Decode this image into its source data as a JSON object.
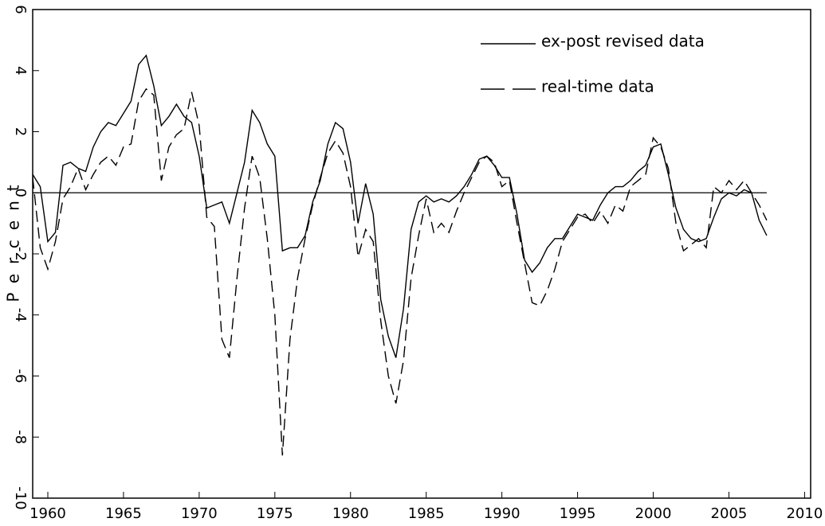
{
  "chart_data": {
    "type": "line",
    "y_label": "Percent",
    "x": [
      1959.0,
      1959.5,
      1960.0,
      1960.5,
      1961.0,
      1961.5,
      1962.0,
      1962.5,
      1963.0,
      1963.5,
      1964.0,
      1964.5,
      1965.0,
      1965.5,
      1966.0,
      1966.5,
      1967.0,
      1967.5,
      1968.0,
      1968.5,
      1969.0,
      1969.5,
      1970.0,
      1970.5,
      1971.0,
      1971.5,
      1972.0,
      1972.5,
      1973.0,
      1973.5,
      1974.0,
      1974.5,
      1975.0,
      1975.5,
      1976.0,
      1976.5,
      1977.0,
      1977.5,
      1978.0,
      1978.5,
      1979.0,
      1979.5,
      1980.0,
      1980.5,
      1981.0,
      1981.5,
      1982.0,
      1982.5,
      1983.0,
      1983.5,
      1984.0,
      1984.5,
      1985.0,
      1985.5,
      1986.0,
      1986.5,
      1987.0,
      1987.5,
      1988.0,
      1988.5,
      1989.0,
      1989.5,
      1990.0,
      1990.5,
      1991.0,
      1991.5,
      1992.0,
      1992.5,
      1993.0,
      1993.5,
      1994.0,
      1994.5,
      1995.0,
      1995.5,
      1996.0,
      1996.5,
      1997.0,
      1997.5,
      1998.0,
      1998.5,
      1999.0,
      1999.5,
      2000.0,
      2000.5,
      2001.0,
      2001.5,
      2002.0,
      2002.5,
      2003.0,
      2003.5,
      2004.0,
      2004.5,
      2005.0,
      2005.5,
      2006.0,
      2006.5,
      2007.0,
      2007.5
    ],
    "series": [
      {
        "name": "ex-post revised data",
        "color": "#000000",
        "dash": "solid",
        "values": [
          0.6,
          0.2,
          -1.6,
          -1.3,
          0.9,
          1.0,
          0.8,
          0.7,
          1.5,
          2.0,
          2.3,
          2.2,
          2.6,
          3.0,
          4.2,
          4.5,
          3.5,
          2.2,
          2.5,
          2.9,
          2.5,
          2.3,
          1.2,
          -0.5,
          -0.4,
          -0.3,
          -1.0,
          0.0,
          1.0,
          2.7,
          2.3,
          1.6,
          1.2,
          -1.9,
          -1.8,
          -1.8,
          -1.4,
          -0.3,
          0.4,
          1.6,
          2.3,
          2.1,
          1.0,
          -1.0,
          0.3,
          -0.7,
          -3.5,
          -4.7,
          -5.4,
          -3.8,
          -1.2,
          -0.3,
          -0.1,
          -0.3,
          -0.2,
          -0.3,
          -0.1,
          0.2,
          0.6,
          1.1,
          1.2,
          0.9,
          0.5,
          0.5,
          -0.7,
          -2.2,
          -2.6,
          -2.3,
          -1.8,
          -1.5,
          -1.5,
          -1.1,
          -0.7,
          -0.8,
          -0.9,
          -0.4,
          0.0,
          0.2,
          0.2,
          0.4,
          0.7,
          0.9,
          1.5,
          1.6,
          0.6,
          -0.5,
          -1.2,
          -1.5,
          -1.6,
          -1.5,
          -0.8,
          -0.2,
          0.0,
          -0.1,
          0.1,
          0.0,
          -0.9,
          -1.4
        ]
      },
      {
        "name": "real-time data",
        "color": "#000000",
        "dash": "dashed",
        "values": [
          0.5,
          -1.8,
          -2.5,
          -1.6,
          -0.2,
          0.2,
          0.8,
          0.1,
          0.6,
          1.0,
          1.2,
          0.9,
          1.5,
          1.6,
          3.0,
          3.4,
          3.2,
          0.4,
          1.5,
          1.9,
          2.1,
          3.3,
          2.2,
          -0.8,
          -1.1,
          -4.8,
          -5.4,
          -2.8,
          -0.5,
          1.2,
          0.5,
          -1.5,
          -4.0,
          -8.6,
          -4.8,
          -2.8,
          -1.5,
          -0.4,
          0.5,
          1.3,
          1.7,
          1.3,
          0.2,
          -2.1,
          -1.2,
          -1.6,
          -4.2,
          -6.0,
          -6.9,
          -5.5,
          -2.8,
          -1.4,
          -0.2,
          -1.3,
          -1.0,
          -1.3,
          -0.6,
          0.0,
          0.5,
          1.0,
          1.2,
          1.0,
          0.2,
          0.4,
          -1.0,
          -2.3,
          -3.6,
          -3.7,
          -3.2,
          -2.5,
          -1.6,
          -1.2,
          -0.8,
          -0.7,
          -1.0,
          -0.6,
          -1.0,
          -0.4,
          -0.6,
          0.2,
          0.4,
          0.6,
          1.8,
          1.5,
          0.8,
          -1.0,
          -1.9,
          -1.7,
          -1.5,
          -1.8,
          0.2,
          0.0,
          0.4,
          0.1,
          0.4,
          0.0,
          -0.4,
          -0.9
        ]
      }
    ],
    "hline": 0,
    "xlim": [
      1959,
      2010.4
    ],
    "xticks": [
      1960,
      1965,
      1970,
      1975,
      1980,
      1985,
      1990,
      1995,
      2000,
      2005,
      2010
    ],
    "ylim": [
      -10,
      6
    ],
    "yticks": [
      -10,
      -8,
      -6,
      -4,
      -2,
      0,
      2,
      4,
      6
    ],
    "legend": "top right",
    "grid": false
  }
}
